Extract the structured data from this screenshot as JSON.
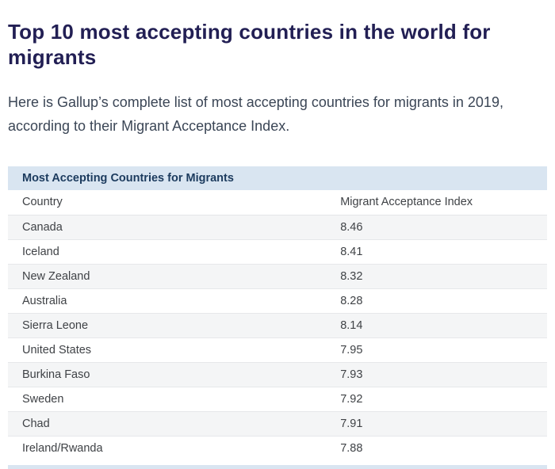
{
  "page": {
    "title": "Top 10 most accepting countries in the world for migrants",
    "intro": "Here is Gallup’s complete list of most accepting countries for migrants in 2019, according to their Migrant Acceptance Index."
  },
  "table": {
    "caption": "Most Accepting Countries for Migrants",
    "columns": [
      "Country",
      "Migrant Acceptance Index"
    ],
    "rows": [
      {
        "country": "Canada",
        "index": "8.46"
      },
      {
        "country": "Iceland",
        "index": "8.41"
      },
      {
        "country": "New Zealand",
        "index": "8.32"
      },
      {
        "country": "Australia",
        "index": "8.28"
      },
      {
        "country": "Sierra Leone",
        "index": "8.14"
      },
      {
        "country": "United States",
        "index": "7.95"
      },
      {
        "country": "Burkina Faso",
        "index": "7.93"
      },
      {
        "country": "Sweden",
        "index": "7.92"
      },
      {
        "country": "Chad",
        "index": "7.91"
      },
      {
        "country": "Ireland/Rwanda",
        "index": "7.88"
      }
    ]
  },
  "chart_data": {
    "type": "table",
    "title": "Most Accepting Countries for Migrants",
    "categories": [
      "Canada",
      "Iceland",
      "New Zealand",
      "Australia",
      "Sierra Leone",
      "United States",
      "Burkina Faso",
      "Sweden",
      "Chad",
      "Ireland/Rwanda"
    ],
    "values": [
      8.46,
      8.41,
      8.32,
      8.28,
      8.14,
      7.95,
      7.93,
      7.92,
      7.91,
      7.88
    ],
    "xlabel": "Country",
    "ylabel": "Migrant Acceptance Index"
  },
  "colors": {
    "heading": "#221f54",
    "body_text": "#3b4656",
    "caption_bg": "#d9e5f1",
    "caption_text": "#1c3b5e",
    "row_stripe": "#f4f5f6",
    "row_border": "#e6e8ea"
  }
}
